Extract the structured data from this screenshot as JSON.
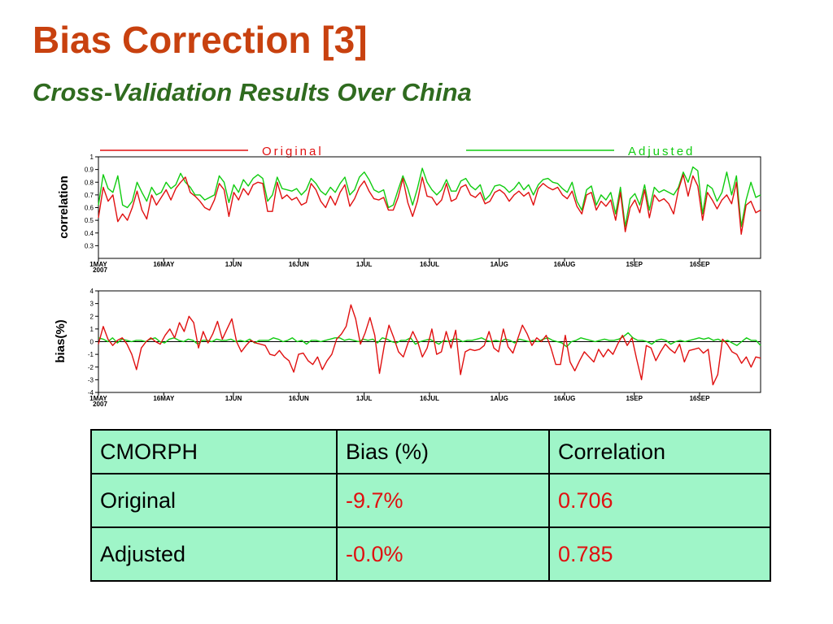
{
  "slide": {
    "title": "Bias Correction [3]",
    "subtitle": "Cross-Validation Results Over China"
  },
  "colors": {
    "title": "#c8410f",
    "subtitle": "#2f6b1f",
    "original": "#e01010",
    "adjusted": "#11cc11",
    "table_bg": "#9ff5c8"
  },
  "chart_data": [
    {
      "type": "line",
      "ylabel": "correlation",
      "ylim": [
        0.2,
        1.0
      ],
      "yticks": [
        0.3,
        0.4,
        0.5,
        0.6,
        0.7,
        0.8,
        0.9,
        1
      ],
      "ytick_labels": [
        "0.3",
        "0.4",
        "0.5",
        "0.6",
        "0.7",
        "0.8",
        "0.9",
        "1"
      ],
      "x_start": "2007-05-01",
      "x_end": "2007-09-30",
      "xticks": [
        "2007-05-01",
        "2007-05-16",
        "2007-06-01",
        "2007-06-16",
        "2007-07-01",
        "2007-07-16",
        "2007-08-01",
        "2007-08-16",
        "2007-09-01",
        "2007-09-16"
      ],
      "xtick_labels": [
        "1MAY",
        "16MAY",
        "1JUN",
        "16JUN",
        "1JUL",
        "16JUL",
        "1AUG",
        "16AUG",
        "1SEP",
        "16SEP"
      ],
      "year_label": "2007",
      "legend": [
        "Original",
        "Adjusted"
      ],
      "legend_position": "top",
      "series": [
        {
          "name": "Original",
          "values": [
            0.52,
            0.76,
            0.65,
            0.7,
            0.49,
            0.55,
            0.5,
            0.6,
            0.73,
            0.58,
            0.51,
            0.7,
            0.62,
            0.68,
            0.74,
            0.66,
            0.75,
            0.8,
            0.84,
            0.72,
            0.69,
            0.65,
            0.6,
            0.58,
            0.66,
            0.79,
            0.74,
            0.53,
            0.72,
            0.66,
            0.75,
            0.7,
            0.78,
            0.8,
            0.79,
            0.57,
            0.57,
            0.8,
            0.67,
            0.7,
            0.66,
            0.68,
            0.62,
            0.64,
            0.79,
            0.74,
            0.65,
            0.6,
            0.69,
            0.62,
            0.72,
            0.78,
            0.61,
            0.67,
            0.76,
            0.81,
            0.73,
            0.67,
            0.66,
            0.68,
            0.58,
            0.58,
            0.68,
            0.83,
            0.64,
            0.53,
            0.65,
            0.84,
            0.69,
            0.68,
            0.62,
            0.66,
            0.79,
            0.65,
            0.67,
            0.76,
            0.78,
            0.7,
            0.68,
            0.72,
            0.63,
            0.65,
            0.72,
            0.74,
            0.71,
            0.65,
            0.7,
            0.73,
            0.69,
            0.72,
            0.62,
            0.75,
            0.79,
            0.76,
            0.74,
            0.76,
            0.7,
            0.67,
            0.73,
            0.61,
            0.55,
            0.7,
            0.72,
            0.58,
            0.65,
            0.61,
            0.66,
            0.5,
            0.72,
            0.41,
            0.6,
            0.66,
            0.56,
            0.74,
            0.52,
            0.7,
            0.65,
            0.67,
            0.63,
            0.55,
            0.74,
            0.86,
            0.69,
            0.85,
            0.77,
            0.5,
            0.72,
            0.66,
            0.59,
            0.66,
            0.7,
            0.63,
            0.8,
            0.39,
            0.62,
            0.65,
            0.56,
            0.58
          ]
        },
        {
          "name": "Adjusted",
          "values": [
            0.62,
            0.86,
            0.75,
            0.72,
            0.85,
            0.62,
            0.6,
            0.65,
            0.8,
            0.72,
            0.65,
            0.76,
            0.7,
            0.72,
            0.8,
            0.75,
            0.78,
            0.87,
            0.8,
            0.76,
            0.7,
            0.7,
            0.66,
            0.68,
            0.7,
            0.85,
            0.8,
            0.64,
            0.78,
            0.72,
            0.82,
            0.77,
            0.83,
            0.86,
            0.83,
            0.65,
            0.7,
            0.84,
            0.75,
            0.74,
            0.73,
            0.75,
            0.7,
            0.74,
            0.83,
            0.79,
            0.73,
            0.7,
            0.76,
            0.72,
            0.79,
            0.84,
            0.7,
            0.74,
            0.84,
            0.88,
            0.82,
            0.74,
            0.72,
            0.74,
            0.6,
            0.62,
            0.74,
            0.85,
            0.75,
            0.62,
            0.75,
            0.91,
            0.8,
            0.74,
            0.7,
            0.74,
            0.82,
            0.73,
            0.73,
            0.81,
            0.83,
            0.77,
            0.74,
            0.78,
            0.66,
            0.7,
            0.77,
            0.78,
            0.76,
            0.72,
            0.75,
            0.8,
            0.74,
            0.78,
            0.7,
            0.78,
            0.82,
            0.83,
            0.8,
            0.79,
            0.75,
            0.72,
            0.8,
            0.65,
            0.58,
            0.74,
            0.77,
            0.62,
            0.7,
            0.66,
            0.72,
            0.55,
            0.76,
            0.45,
            0.67,
            0.71,
            0.62,
            0.78,
            0.58,
            0.76,
            0.72,
            0.74,
            0.72,
            0.7,
            0.76,
            0.88,
            0.8,
            0.92,
            0.89,
            0.55,
            0.78,
            0.75,
            0.65,
            0.72,
            0.88,
            0.7,
            0.85,
            0.45,
            0.66,
            0.8,
            0.68,
            0.7
          ]
        }
      ]
    },
    {
      "type": "line",
      "ylabel": "bias(%)",
      "ylim": [
        -4,
        4
      ],
      "yticks": [
        -4,
        -3,
        -2,
        -1,
        0,
        1,
        2,
        3,
        4
      ],
      "ytick_labels": [
        "-4",
        "-3",
        "-2",
        "-1",
        "0",
        "1",
        "2",
        "3",
        "4"
      ],
      "x_start": "2007-05-01",
      "x_end": "2007-09-30",
      "xticks": [
        "2007-05-01",
        "2007-05-16",
        "2007-06-01",
        "2007-06-16",
        "2007-07-01",
        "2007-07-16",
        "2007-08-01",
        "2007-08-16",
        "2007-09-01",
        "2007-09-16"
      ],
      "xtick_labels": [
        "1MAY",
        "16MAY",
        "1JUN",
        "16JUN",
        "1JUL",
        "16JUL",
        "1AUG",
        "16AUG",
        "1SEP",
        "16SEP"
      ],
      "year_label": "2007",
      "reference_line": 0,
      "series": [
        {
          "name": "Original",
          "values": [
            -0.2,
            1.2,
            0.2,
            -0.3,
            0.1,
            0.3,
            -0.2,
            -1.0,
            -2.2,
            -0.5,
            0.0,
            0.3,
            0.0,
            -0.2,
            0.5,
            1.0,
            0.3,
            1.5,
            0.8,
            2.0,
            1.5,
            -0.5,
            0.8,
            -0.1,
            0.6,
            1.6,
            0.2,
            1.0,
            1.8,
            0.0,
            -0.8,
            -0.3,
            0.1,
            -0.1,
            -0.2,
            -0.3,
            -1.0,
            -1.1,
            -0.7,
            -1.2,
            -1.5,
            -2.4,
            -1.0,
            -0.9,
            -1.5,
            -1.8,
            -1.2,
            -2.2,
            -1.5,
            -1.0,
            0.2,
            0.6,
            1.2,
            2.9,
            1.8,
            -0.2,
            0.7,
            1.9,
            0.5,
            -2.5,
            -0.3,
            1.3,
            0.3,
            -0.8,
            -1.2,
            -0.1,
            0.8,
            0.0,
            -1.2,
            -0.5,
            1.0,
            -1.0,
            -0.8,
            0.8,
            -0.5,
            0.9,
            -2.6,
            -0.8,
            -0.6,
            -0.7,
            -0.6,
            -0.3,
            0.8,
            -0.5,
            -0.8,
            1.0,
            -0.4,
            -0.9,
            0.2,
            1.3,
            0.6,
            -0.3,
            0.3,
            0.0,
            0.5,
            -0.5,
            -1.8,
            -1.8,
            0.5,
            -1.6,
            -2.3,
            -1.5,
            -0.8,
            -1.2,
            -1.6,
            -0.6,
            -1.2,
            -0.6,
            -1.0,
            -0.2,
            0.5,
            -0.3,
            0.3,
            -1.4,
            -3.0,
            -0.3,
            -0.5,
            -1.5,
            -0.8,
            -0.2,
            -0.6,
            -0.9,
            -0.2,
            -1.6,
            -0.7,
            -0.6,
            -0.5,
            -0.9,
            -0.6,
            -3.4,
            -2.6,
            0.2,
            -0.2,
            -0.8,
            -1.0,
            -1.7,
            -1.2,
            -2.0,
            -1.2,
            -1.3
          ]
        },
        {
          "name": "Adjusted",
          "values": [
            0.3,
            0.2,
            0.0,
            0.3,
            -0.1,
            0.2,
            0.1,
            0.0,
            0.1,
            0.1,
            0.0,
            0.2,
            0.3,
            0.0,
            -0.1,
            0.2,
            0.3,
            0.1,
            0.0,
            0.2,
            0.1,
            -0.2,
            0.1,
            0.1,
            0.0,
            0.2,
            0.1,
            0.1,
            0.2,
            0.0,
            0.1,
            0.0,
            0.2,
            -0.1,
            0.1,
            0.1,
            0.1,
            0.3,
            0.2,
            0.0,
            0.1,
            0.3,
            0.0,
            0.1,
            -0.2,
            0.1,
            0.1,
            0.0,
            0.1,
            0.2,
            0.3,
            0.3,
            0.1,
            0.2,
            0.1,
            0.0,
            0.2,
            0.1,
            0.2,
            -0.1,
            0.3,
            0.2,
            0.0,
            -0.1,
            0.1,
            0.1,
            0.3,
            -0.2,
            0.0,
            0.1,
            0.2,
            0.0,
            -0.2,
            0.1,
            0.0,
            0.2,
            0.2,
            0.0,
            0.1,
            0.1,
            0.2,
            0.3,
            0.1,
            0.0,
            0.1,
            0.0,
            0.2,
            0.1,
            -0.1,
            0.2,
            0.1,
            0.0,
            0.1,
            0.0,
            0.2,
            0.3,
            0.1,
            0.0,
            -0.1,
            -0.4,
            0.0,
            0.1,
            0.3,
            0.2,
            0.1,
            0.0,
            0.1,
            0.2,
            0.1,
            0.1,
            0.2,
            0.4,
            0.7,
            0.3,
            0.1,
            0.1,
            0.0,
            -0.2,
            0.1,
            0.2,
            0.1,
            -0.2,
            0.0,
            0.1,
            0.0,
            0.1,
            0.2,
            0.3,
            0.2,
            0.3,
            0.1,
            0.2,
            0.0,
            0.1,
            -0.1,
            -0.3,
            0.0,
            0.3,
            0.1,
            0.1,
            -0.3
          ]
        }
      ]
    }
  ],
  "table": {
    "header": [
      "CMORPH",
      "Bias (%)",
      "Correlation"
    ],
    "rows": [
      [
        "Original",
        "-9.7%",
        "0.706"
      ],
      [
        "Adjusted",
        "-0.0%",
        "0.785"
      ]
    ]
  }
}
